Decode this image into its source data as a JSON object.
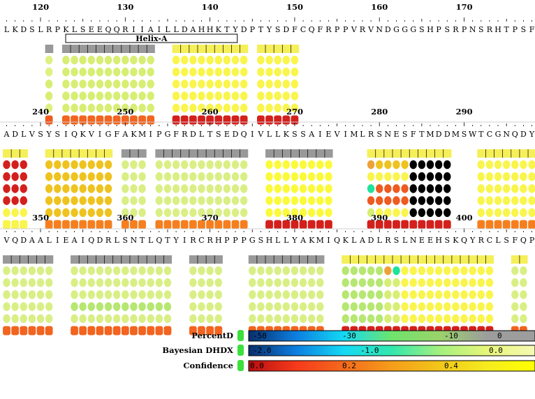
{
  "rows": [
    {
      "sequence": "LKDSLRPKLSEEQQRIIAILLDAHHKTYDPTYSDFCQFRPPVRVNDGGGSHPSRPNSRHTPSF",
      "numbers": [
        "120",
        "130",
        "140",
        "150",
        "160",
        "170"
      ],
      "annotation": {
        "label": "Helix-A",
        "start": 4,
        "end": 25
      },
      "segments": [
        {
          "start": 5,
          "end": 5,
          "bar": "g",
          "dots": [
            [
              "y7"
            ],
            [
              "y7"
            ],
            [
              "y6"
            ],
            [
              "y6"
            ],
            [
              "y7"
            ]
          ],
          "conf": "r2"
        },
        {
          "start": 7,
          "end": 17,
          "bar": "g",
          "dots": [
            [
              "y6"
            ],
            [
              "y6"
            ],
            [
              "y6"
            ],
            [
              "y6"
            ],
            [
              "y6"
            ]
          ],
          "conf": "r3"
        },
        {
          "start": 20,
          "end": 28,
          "bar": "y",
          "dots": [
            [
              "y1"
            ],
            [
              "y1"
            ],
            [
              "y1"
            ],
            [
              "y1"
            ],
            [
              "y1"
            ]
          ],
          "conf": "r1"
        },
        {
          "start": 30,
          "end": 34,
          "bar": "y",
          "dots": [
            [
              "y1"
            ],
            [
              "y1"
            ],
            [
              "y1"
            ],
            [
              "y1"
            ],
            [
              "y1"
            ]
          ],
          "conf": "r1"
        }
      ]
    },
    {
      "sequence": "ADLVSYSIQKVIGFAKMIPGFRDLTSEDQIVLLKSSAIEVIMLRSNESFTMDDMSWTCGNQDY",
      "numbers": [
        "240",
        "250",
        "260",
        "270",
        "280",
        "290"
      ],
      "segments": [
        {
          "start": 0,
          "end": 2,
          "bar": "y",
          "dots": [
            [
              "r1"
            ],
            [
              "r1"
            ],
            [
              "r1"
            ],
            [
              "r1"
            ],
            [
              "y1"
            ]
          ],
          "conf": "y1"
        },
        {
          "start": 5,
          "end": 12,
          "bar": "y",
          "dots": [
            [
              "o1"
            ],
            [
              "o1"
            ],
            [
              "o1"
            ],
            [
              "o1"
            ],
            [
              "o1"
            ]
          ],
          "conf": "o2"
        },
        {
          "start": 14,
          "end": 16,
          "bar": "g",
          "dots": [
            [
              "y5"
            ],
            [
              "y5"
            ],
            [
              "y5"
            ],
            [
              "y5"
            ],
            [
              "y5"
            ]
          ],
          "conf": "o2"
        },
        {
          "start": 18,
          "end": 28,
          "bar": "g",
          "dots": [
            [
              "y5"
            ],
            [
              "y5"
            ],
            [
              "y5"
            ],
            [
              "y5"
            ],
            [
              "y5"
            ]
          ],
          "conf": "o2"
        },
        {
          "start": 31,
          "end": 38,
          "bar": "g",
          "dots": [
            [
              "y2"
            ],
            [
              "y2"
            ],
            [
              "y2"
            ],
            [
              "y2"
            ],
            [
              "y2"
            ]
          ],
          "conf": "r1"
        },
        {
          "start": 43,
          "end": 52,
          "bar": "y",
          "dots": [
            [
              "o3",
              "o1",
              "o1",
              "o1",
              "o1"
            ],
            [
              "y1",
              "y1",
              "y1",
              "y1",
              "y1"
            ],
            [
              "c1",
              "r2",
              "r2",
              "r2",
              "r2"
            ],
            [
              "r2",
              "r2",
              "r2",
              "r2",
              "r2"
            ],
            [
              "y6",
              "y1",
              "y1",
              "y1",
              "y1"
            ]
          ],
          "conf": "r1"
        },
        {
          "start": 56,
          "end": 63,
          "bar": "y",
          "dots": [
            [
              "y1"
            ],
            [
              "y1"
            ],
            [
              "y1"
            ],
            [
              "y1"
            ],
            [
              "y1"
            ]
          ],
          "conf": "o2"
        }
      ]
    },
    {
      "sequence": "VQDAALIEAIQDRLSNTLQTYIRCRHPPPGSHLLYAKMIQKLADLRSLNEEHSKQYRCLSFQP",
      "numbers": [
        "350",
        "360",
        "370",
        "380",
        "390",
        "400"
      ],
      "segments": [
        {
          "start": 0,
          "end": 5,
          "bar": "g",
          "dots": [
            [
              "y5"
            ],
            [
              "y5"
            ],
            [
              "y5"
            ],
            [
              "y5"
            ],
            [
              "y5"
            ]
          ],
          "conf": "r3"
        },
        {
          "start": 8,
          "end": 19,
          "bar": "g",
          "dots": [
            [
              "y5"
            ],
            [
              "y5"
            ],
            [
              "y5"
            ],
            [
              "g5"
            ],
            [
              "y5"
            ]
          ],
          "conf": "r3"
        },
        {
          "start": 22,
          "end": 25,
          "bar": "g",
          "dots": [
            [
              "y5"
            ],
            [
              "y5"
            ],
            [
              "y5"
            ],
            [
              "y5"
            ],
            [
              "y5"
            ]
          ],
          "conf": "r3"
        },
        {
          "start": 29,
          "end": 37,
          "bar": "g",
          "dots": [
            [
              "y5"
            ],
            [
              "y5"
            ],
            [
              "y5"
            ],
            [
              "y5"
            ],
            [
              "y5"
            ]
          ],
          "conf": "r3"
        },
        {
          "start": 40,
          "end": 57,
          "bar": "y",
          "dots": [
            [
              "g5",
              "g5",
              "g5",
              "g5",
              "g5",
              "o3",
              "c1",
              "y1",
              "y1",
              "y1",
              "y1",
              "y1",
              "y1",
              "y1",
              "y1",
              "y1",
              "y1",
              "y1"
            ],
            [
              "g5",
              "g5",
              "g5",
              "g5",
              "g5",
              "y6",
              "y6",
              "y1",
              "y1",
              "y1",
              "y1",
              "y1",
              "y1",
              "y1",
              "y1",
              "y1",
              "y1",
              "y1"
            ],
            [
              "g5",
              "g5",
              "g5",
              "g5",
              "g5",
              "y6",
              "y6",
              "y1",
              "y1",
              "y1",
              "y1",
              "y1",
              "y1",
              "y1",
              "y1",
              "y1",
              "y1",
              "y1"
            ],
            [
              "g5",
              "g5",
              "g5",
              "g5",
              "g5",
              "y6",
              "y6",
              "y1",
              "y1",
              "y1",
              "y1",
              "y1",
              "y1",
              "y1",
              "y1",
              "y1",
              "y1",
              "y1"
            ],
            [
              "g5",
              "g5",
              "g5",
              "g5",
              "g5",
              "y6",
              "y6",
              "y1",
              "y1",
              "y1",
              "y1",
              "y1",
              "y1",
              "y1",
              "y1",
              "y1",
              "y1",
              "y1"
            ]
          ],
          "conf": "r1"
        },
        {
          "start": 60,
          "end": 61,
          "bar": "y",
          "dots": [
            [
              "y5"
            ],
            [
              "y5"
            ],
            [
              "y5"
            ],
            [
              "y5"
            ],
            [
              "y5"
            ]
          ],
          "conf": "r3"
        }
      ]
    }
  ],
  "palette": {
    "g": "#999999",
    "y": "#f5ef5a",
    "y1": "#f9f54c",
    "y2": "#fbfa3a",
    "y5": "#d9ef86",
    "y6": "#d7ee74",
    "y7": "#dff082",
    "o1": "#efc31f",
    "o2": "#f57f1f",
    "o3": "#eda13a",
    "r1": "#d3201c",
    "r2": "#ee5a20",
    "r3": "#f2641f",
    "c1": "#1fe39c",
    "g5": "#b6e772",
    "bar_tick": "#000000"
  },
  "legend": [
    {
      "label": "PercentD",
      "swatch": "#3ce03c",
      "stops": [
        "#0a2e6c",
        "#0c7fe0",
        "#14d9f4",
        "#6ee46c",
        "#9bd26b",
        "#9d9d9d",
        "#9d9d9d"
      ],
      "ticks": [
        "-50",
        "-30",
        "-10",
        "0"
      ]
    },
    {
      "label": "Bayesian DHDX",
      "swatch": "#3ce03c",
      "stops": [
        "#0a2e6c",
        "#0c7fe0",
        "#14d9f4",
        "#32e7ad",
        "#a4f07e",
        "#e7f67a",
        "#f6f9b4"
      ],
      "ticks": [
        "-2.0",
        "-1.0",
        "0.0"
      ]
    },
    {
      "label": "Confidence",
      "swatch": "#3ce03c",
      "stops": [
        "#b80f11",
        "#f63a1b",
        "#f36a1d",
        "#f59d1a",
        "#f2c61a",
        "#f5ec1f",
        "#ffff00"
      ],
      "ticks": [
        "0.0",
        "0.2",
        "0.4"
      ]
    }
  ]
}
